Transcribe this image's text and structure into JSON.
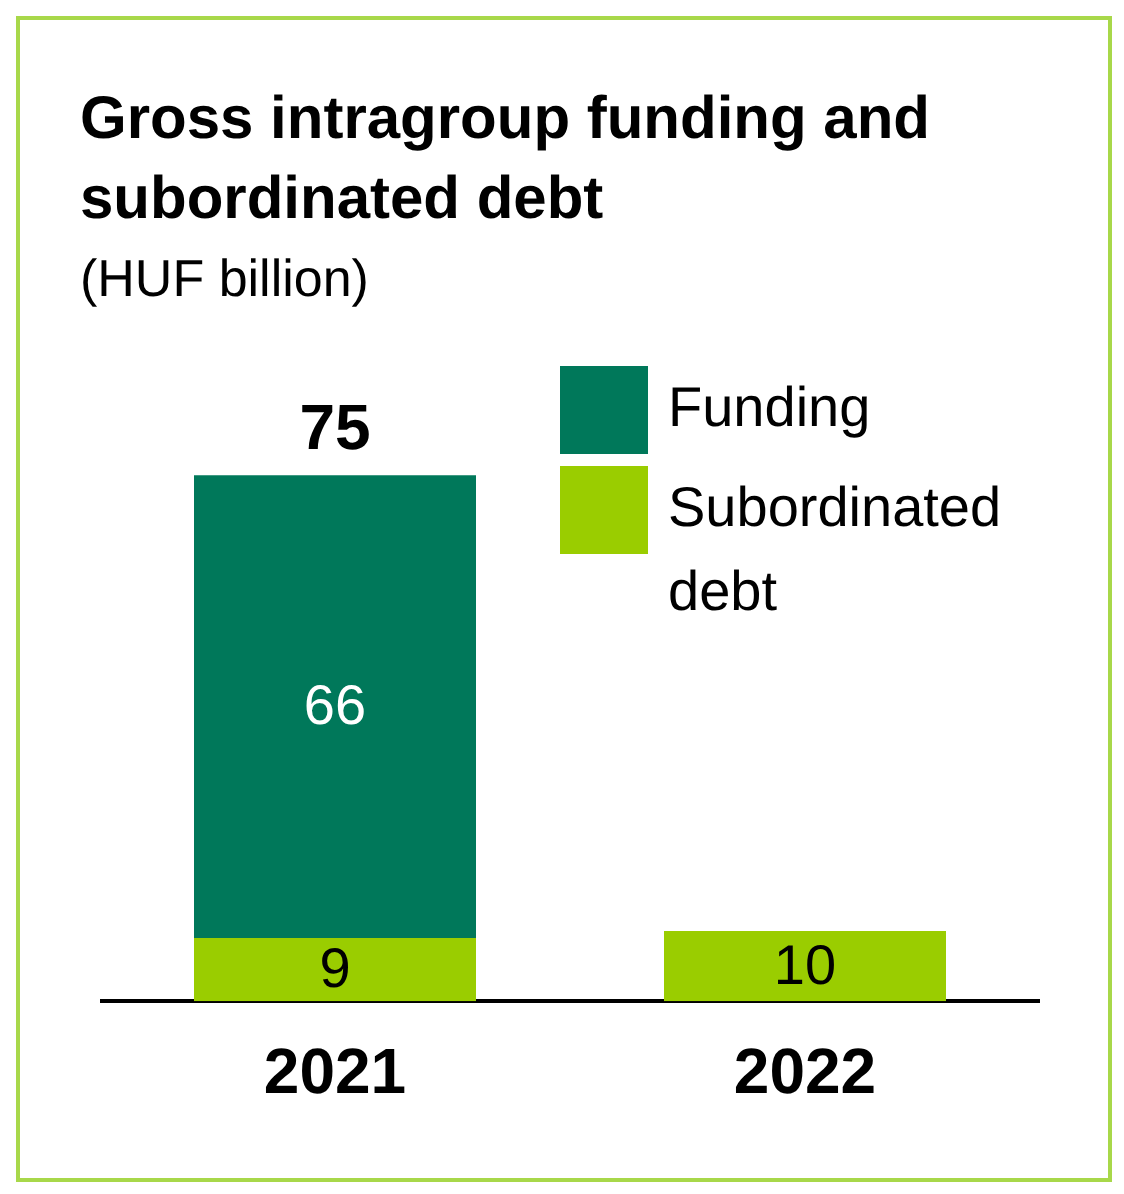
{
  "chart_data": {
    "type": "bar",
    "title": "Gross intragroup funding and subordinated debt",
    "subtitle": "(HUF billion)",
    "categories": [
      "2021",
      "2022"
    ],
    "stacked": true,
    "data_labels": true,
    "legend": "top right",
    "totals": [
      "75",
      null
    ],
    "series": [
      {
        "name": "Subordinated debt",
        "color": "#9acd00",
        "values": [
          9,
          10
        ]
      },
      {
        "name": "Funding",
        "color": "#00785a",
        "values": [
          66,
          null
        ]
      }
    ]
  }
}
